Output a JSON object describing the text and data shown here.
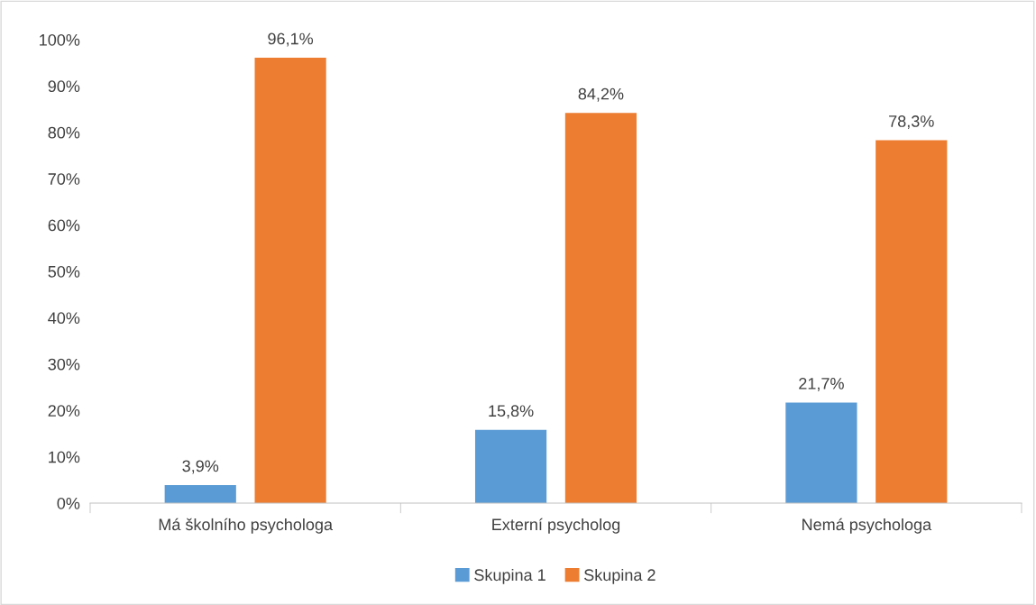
{
  "chart_data": {
    "type": "bar",
    "categories": [
      "Má školního psychologa",
      "Externí psycholog",
      "Nemá psychologa"
    ],
    "series": [
      {
        "name": "Skupina 1",
        "color": "#5b9bd5",
        "values": [
          3.9,
          15.8,
          21.7
        ],
        "value_labels": [
          "3,9%",
          "15,8%",
          "21,7%"
        ]
      },
      {
        "name": "Skupina 2",
        "color": "#ed7d31",
        "values": [
          96.1,
          84.2,
          78.3
        ],
        "value_labels": [
          "96,1%",
          "84,2%",
          "78,3%"
        ]
      }
    ],
    "ylim": [
      0,
      100
    ],
    "yticks": [
      {
        "value": 0,
        "label": "0%"
      },
      {
        "value": 10,
        "label": "10%"
      },
      {
        "value": 20,
        "label": "20%"
      },
      {
        "value": 30,
        "label": "30%"
      },
      {
        "value": 40,
        "label": "40%"
      },
      {
        "value": 50,
        "label": "50%"
      },
      {
        "value": 60,
        "label": "60%"
      },
      {
        "value": 70,
        "label": "70%"
      },
      {
        "value": 80,
        "label": "80%"
      },
      {
        "value": 90,
        "label": "90%"
      },
      {
        "value": 100,
        "label": "100%"
      }
    ],
    "grid": false,
    "legend": "bottom"
  }
}
